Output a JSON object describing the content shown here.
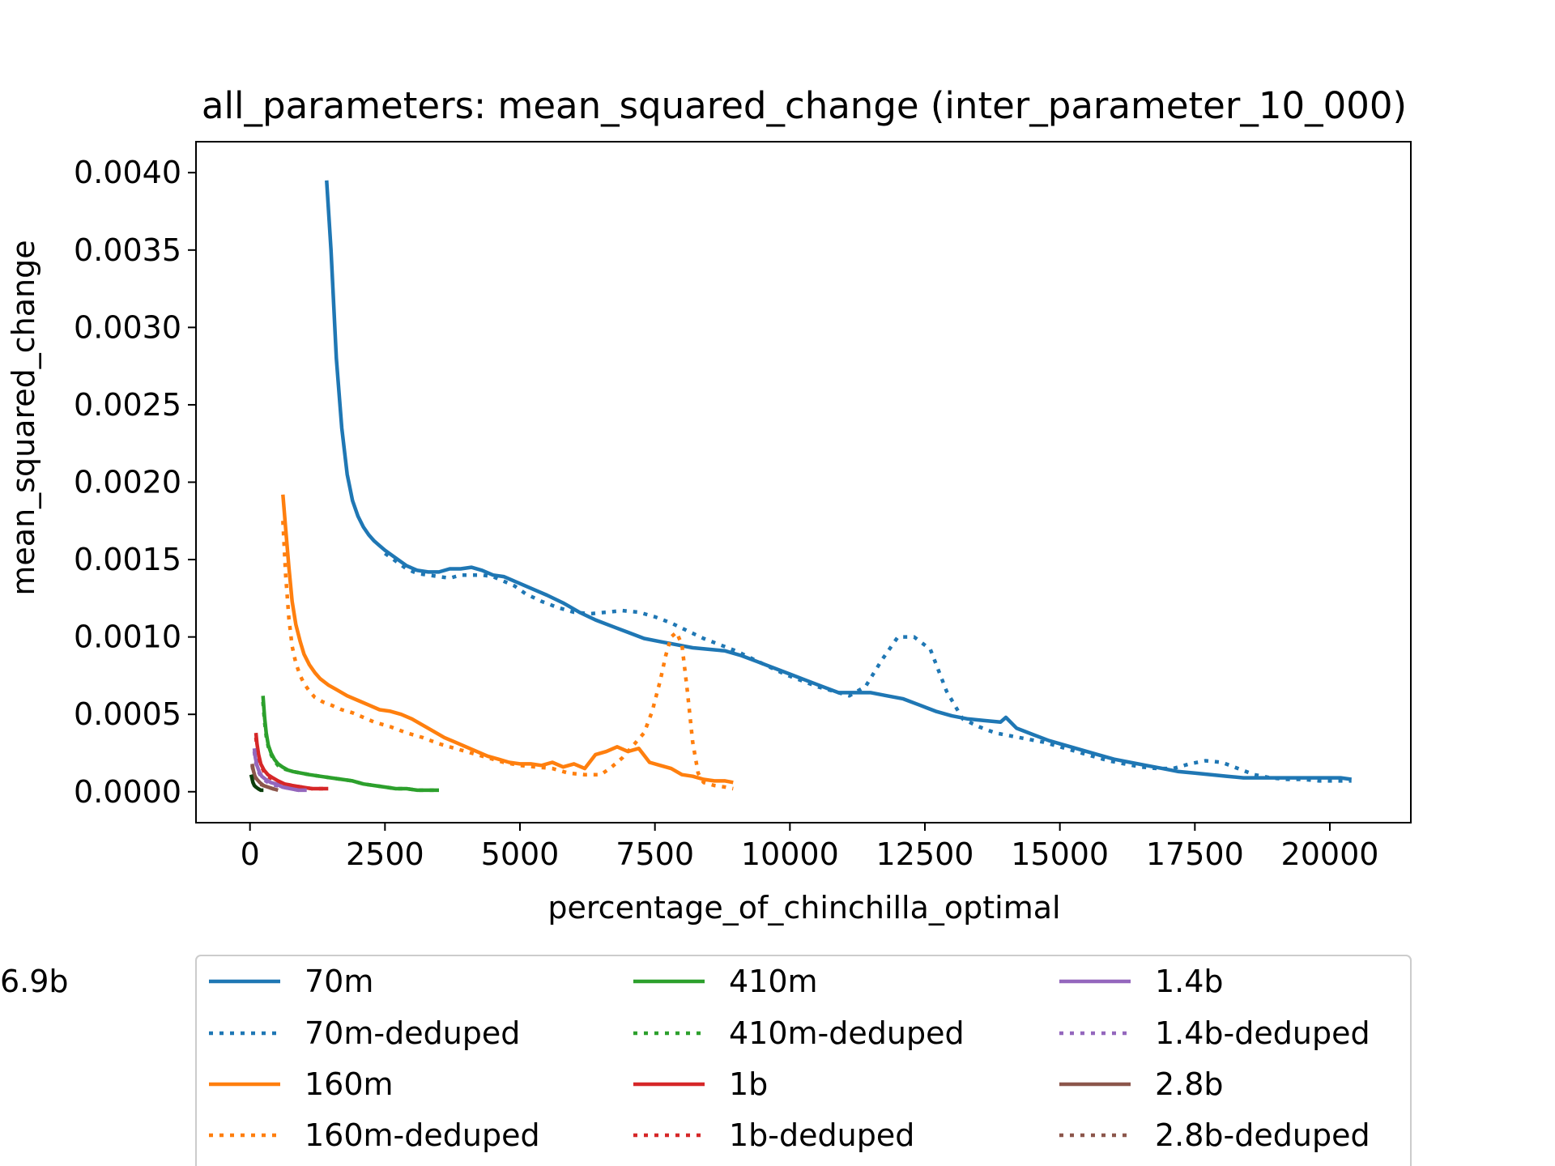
{
  "chart_data": {
    "type": "line",
    "title": "all_parameters: mean_squared_change (inter_parameter_10_000)",
    "xlabel": "percentage_of_chinchilla_optimal",
    "ylabel": "mean_squared_change",
    "xlim": [
      -1000,
      21500
    ],
    "ylim": [
      -0.0002,
      0.0042
    ],
    "xticks": [
      0,
      2500,
      5000,
      7500,
      10000,
      12500,
      15000,
      17500,
      20000
    ],
    "xtick_labels": [
      "0",
      "2500",
      "5000",
      "7500",
      "10000",
      "12500",
      "15000",
      "17500",
      "20000"
    ],
    "yticks": [
      0.0,
      0.0005,
      0.001,
      0.0015,
      0.002,
      0.0025,
      0.003,
      0.0035,
      0.004
    ],
    "ytick_labels": [
      "0.0000",
      "0.0005",
      "0.0010",
      "0.0015",
      "0.0020",
      "0.0025",
      "0.0030",
      "0.0035",
      "0.0040"
    ],
    "grid": false,
    "legend_position": "below",
    "series": [
      {
        "name": "70m",
        "color": "#1f77b4",
        "style": "solid",
        "x": [
          1420,
          1500,
          1600,
          1700,
          1800,
          1900,
          2000,
          2100,
          2200,
          2300,
          2400,
          2500,
          2700,
          2900,
          3100,
          3300,
          3500,
          3700,
          3900,
          4100,
          4300,
          4500,
          4700,
          4900,
          5100,
          5300,
          5500,
          5800,
          6100,
          6400,
          6700,
          7000,
          7300,
          7600,
          7900,
          8200,
          8500,
          8800,
          9100,
          9400,
          9700,
          10000,
          10300,
          10600,
          10900,
          11200,
          11500,
          11800,
          12100,
          12400,
          12700,
          13000,
          13300,
          13600,
          13900,
          14000,
          14200,
          14500,
          14800,
          15100,
          15400,
          15700,
          16000,
          16300,
          16600,
          16900,
          17200,
          17500,
          17800,
          18100,
          18400,
          18700,
          19000,
          19300,
          19600,
          19900,
          20200,
          20400
        ],
        "y": [
          0.00395,
          0.0035,
          0.0028,
          0.00235,
          0.00205,
          0.00188,
          0.00178,
          0.00171,
          0.00166,
          0.00162,
          0.00159,
          0.00156,
          0.00151,
          0.00146,
          0.00143,
          0.00142,
          0.00142,
          0.00144,
          0.00144,
          0.00145,
          0.00143,
          0.0014,
          0.00139,
          0.00136,
          0.00133,
          0.0013,
          0.00127,
          0.00122,
          0.00116,
          0.00111,
          0.00107,
          0.00103,
          0.00099,
          0.00097,
          0.00095,
          0.00093,
          0.00092,
          0.00091,
          0.00088,
          0.00084,
          0.0008,
          0.00076,
          0.00072,
          0.00068,
          0.00064,
          0.00064,
          0.00064,
          0.00062,
          0.0006,
          0.00056,
          0.00052,
          0.00049,
          0.00047,
          0.00046,
          0.00045,
          0.00048,
          0.00041,
          0.00037,
          0.00033,
          0.0003,
          0.00027,
          0.00024,
          0.00021,
          0.00019,
          0.00017,
          0.00015,
          0.00013,
          0.00012,
          0.00011,
          0.0001,
          9e-05,
          9e-05,
          9e-05,
          9e-05,
          9e-05,
          9e-05,
          9e-05,
          8e-05
        ]
      },
      {
        "name": "70m-deduped",
        "color": "#1f77b4",
        "style": "dotted",
        "x": [
          2500,
          2700,
          2900,
          3100,
          3300,
          3500,
          3700,
          3900,
          4100,
          4300,
          4500,
          4700,
          4900,
          5100,
          5400,
          5700,
          6000,
          6300,
          6600,
          6900,
          7200,
          7500,
          7800,
          8100,
          8400,
          8700,
          9000,
          9300,
          9600,
          9900,
          10200,
          10500,
          10800,
          11100,
          11400,
          11700,
          12000,
          12300,
          12600,
          12900,
          13200,
          13500,
          13800,
          14100,
          14400,
          14700,
          15000,
          15300,
          15600,
          15900,
          16200,
          16500,
          16800,
          17100,
          17400,
          17700,
          18000,
          18300,
          18600,
          18900,
          19200,
          19500,
          19800,
          20100,
          20400
        ],
        "y": [
          0.00154,
          0.00149,
          0.00144,
          0.00141,
          0.0014,
          0.00139,
          0.00138,
          0.0014,
          0.0014,
          0.0014,
          0.00139,
          0.00136,
          0.00133,
          0.00128,
          0.00123,
          0.00119,
          0.00116,
          0.00115,
          0.00116,
          0.00117,
          0.00116,
          0.00113,
          0.00109,
          0.00104,
          0.00099,
          0.00095,
          0.00091,
          0.00086,
          0.00081,
          0.00076,
          0.00072,
          0.00068,
          0.00065,
          0.00062,
          0.00068,
          0.00085,
          0.001,
          0.001,
          0.00092,
          0.00065,
          0.00047,
          0.00042,
          0.00038,
          0.00036,
          0.00034,
          0.00032,
          0.00029,
          0.00026,
          0.00023,
          0.0002,
          0.00018,
          0.00016,
          0.00015,
          0.00015,
          0.00018,
          0.0002,
          0.00019,
          0.00015,
          0.00011,
          9e-05,
          8e-05,
          8e-05,
          7e-05,
          7e-05,
          7e-05
        ]
      },
      {
        "name": "160m",
        "color": "#ff7f0e",
        "style": "solid",
        "x": [
          610,
          660,
          720,
          780,
          850,
          930,
          1000,
          1100,
          1200,
          1300,
          1450,
          1600,
          1800,
          2000,
          2200,
          2400,
          2600,
          2800,
          3000,
          3200,
          3400,
          3600,
          3800,
          4000,
          4200,
          4400,
          4600,
          4800,
          5000,
          5200,
          5400,
          5600,
          5800,
          6000,
          6200,
          6400,
          6600,
          6800,
          7000,
          7200,
          7400,
          7600,
          7800,
          8000,
          8200,
          8400,
          8600,
          8800,
          8950
        ],
        "y": [
          0.00192,
          0.0017,
          0.00145,
          0.00123,
          0.00108,
          0.00097,
          0.00089,
          0.00082,
          0.00077,
          0.00073,
          0.00069,
          0.00066,
          0.00062,
          0.00059,
          0.00056,
          0.00053,
          0.00052,
          0.0005,
          0.00047,
          0.00043,
          0.00039,
          0.00035,
          0.00032,
          0.00029,
          0.00026,
          0.00023,
          0.00021,
          0.00019,
          0.00018,
          0.00018,
          0.00017,
          0.00019,
          0.00016,
          0.00018,
          0.00015,
          0.00024,
          0.00026,
          0.00029,
          0.00026,
          0.00028,
          0.00019,
          0.00017,
          0.00015,
          0.00011,
          0.0001,
          8e-05,
          7e-05,
          7e-05,
          6e-05
        ]
      },
      {
        "name": "160m-deduped",
        "color": "#ff7f0e",
        "style": "dotted",
        "x": [
          610,
          660,
          720,
          780,
          850,
          930,
          1000,
          1100,
          1200,
          1350,
          1500,
          1700,
          1900,
          2100,
          2300,
          2600,
          2900,
          3200,
          3500,
          3800,
          4100,
          4400,
          4700,
          5000,
          5300,
          5600,
          5900,
          6200,
          6500,
          6700,
          6900,
          7100,
          7300,
          7450,
          7600,
          7700,
          7800,
          7900,
          8000,
          8100,
          8200,
          8300,
          8400,
          8600,
          8800,
          8950
        ],
        "y": [
          0.00175,
          0.0014,
          0.00112,
          0.00094,
          0.00083,
          0.00075,
          0.0007,
          0.00065,
          0.00061,
          0.00058,
          0.00056,
          0.00053,
          0.00051,
          0.00048,
          0.00045,
          0.00042,
          0.00038,
          0.00035,
          0.00031,
          0.00028,
          0.00025,
          0.00022,
          0.00019,
          0.00017,
          0.00016,
          0.00015,
          0.00012,
          0.00011,
          0.00011,
          0.00016,
          0.00022,
          0.0003,
          0.00038,
          0.00052,
          0.00072,
          0.00088,
          0.001,
          0.00103,
          0.00095,
          0.00065,
          0.00032,
          0.00012,
          6e-05,
          4e-05,
          3e-05,
          2e-05
        ]
      },
      {
        "name": "410m",
        "color": "#2ca02c",
        "style": "solid",
        "x": [
          240,
          270,
          300,
          340,
          390,
          450,
          520,
          600,
          700,
          800,
          950,
          1100,
          1300,
          1500,
          1700,
          1900,
          2100,
          2300,
          2500,
          2700,
          2900,
          3100,
          3300,
          3500
        ],
        "y": [
          0.00062,
          0.00048,
          0.00038,
          0.0003,
          0.00025,
          0.00021,
          0.00018,
          0.00016,
          0.00014,
          0.00013,
          0.00012,
          0.00011,
          0.0001,
          9e-05,
          8e-05,
          7e-05,
          5e-05,
          4e-05,
          3e-05,
          2e-05,
          2e-05,
          1e-05,
          1e-05,
          1e-05
        ]
      },
      {
        "name": "410m-deduped",
        "color": "#2ca02c",
        "style": "dotted",
        "x": [
          240,
          270,
          300,
          340,
          390,
          450,
          520,
          600,
          700,
          800,
          950,
          1100,
          1300,
          1500,
          1700,
          1900,
          2100,
          2300,
          2500,
          2700,
          2900,
          3100,
          3300,
          3500
        ],
        "y": [
          0.00058,
          0.00045,
          0.00036,
          0.00029,
          0.00024,
          0.0002,
          0.00017,
          0.00015,
          0.00014,
          0.00013,
          0.00012,
          0.00011,
          0.0001,
          9e-05,
          8e-05,
          7e-05,
          5e-05,
          4e-05,
          3e-05,
          2e-05,
          2e-05,
          1e-05,
          1e-05,
          1e-05
        ]
      },
      {
        "name": "1b",
        "color": "#d62728",
        "style": "solid",
        "x": [
          110,
          130,
          160,
          200,
          260,
          330,
          420,
          520,
          640,
          780,
          950,
          1150,
          1450
        ],
        "y": [
          0.00038,
          0.00031,
          0.00024,
          0.00018,
          0.00014,
          0.00011,
          9e-05,
          7e-05,
          5e-05,
          4e-05,
          3e-05,
          2e-05,
          2e-05
        ]
      },
      {
        "name": "1b-deduped",
        "color": "#d62728",
        "style": "dotted",
        "x": [
          110,
          130,
          160,
          200,
          260,
          330,
          420,
          520,
          640,
          780,
          950,
          1150,
          1400
        ],
        "y": [
          0.00035,
          0.00028,
          0.00022,
          0.00017,
          0.00013,
          0.0001,
          8e-05,
          6e-05,
          5e-05,
          4e-05,
          3e-05,
          2e-05,
          2e-05
        ]
      },
      {
        "name": "1.4b",
        "color": "#9467bd",
        "style": "solid",
        "x": [
          80,
          100,
          130,
          170,
          220,
          290,
          380,
          480,
          600,
          750,
          900,
          1050
        ],
        "y": [
          0.00028,
          0.00022,
          0.00017,
          0.00013,
          0.0001,
          8e-05,
          6e-05,
          5e-05,
          3e-05,
          2e-05,
          1e-05,
          1e-05
        ]
      },
      {
        "name": "1.4b-deduped",
        "color": "#9467bd",
        "style": "dotted",
        "x": [
          80,
          100,
          130,
          170,
          220,
          290,
          380,
          480,
          600,
          750,
          900,
          1000
        ],
        "y": [
          0.00026,
          0.0002,
          0.00016,
          0.00012,
          9e-05,
          7e-05,
          5e-05,
          4e-05,
          3e-05,
          2e-05,
          1e-05,
          1e-05
        ]
      },
      {
        "name": "2.8b",
        "color": "#8c564b",
        "style": "solid",
        "x": [
          40,
          60,
          90,
          130,
          180,
          250,
          330,
          420,
          520
        ],
        "y": [
          0.00018,
          0.00014,
          0.0001,
          8e-05,
          6e-05,
          4e-05,
          3e-05,
          2e-05,
          1e-05
        ]
      },
      {
        "name": "2.8b-deduped",
        "color": "#8c564b",
        "style": "dotted",
        "x": [
          40,
          60,
          90,
          130,
          180,
          250,
          330,
          420,
          500
        ],
        "y": [
          0.00017,
          0.00013,
          0.0001,
          7e-05,
          5e-05,
          4e-05,
          3e-05,
          2e-05,
          1e-05
        ]
      },
      {
        "name": "6.9b",
        "color": "#0b3d0b",
        "style": "solid",
        "x": [
          20,
          35,
          55,
          80,
          110,
          150,
          200,
          250
        ],
        "y": [
          0.00011,
          9e-05,
          6e-05,
          4e-05,
          3e-05,
          2e-05,
          1e-05,
          1e-05
        ]
      }
    ]
  }
}
